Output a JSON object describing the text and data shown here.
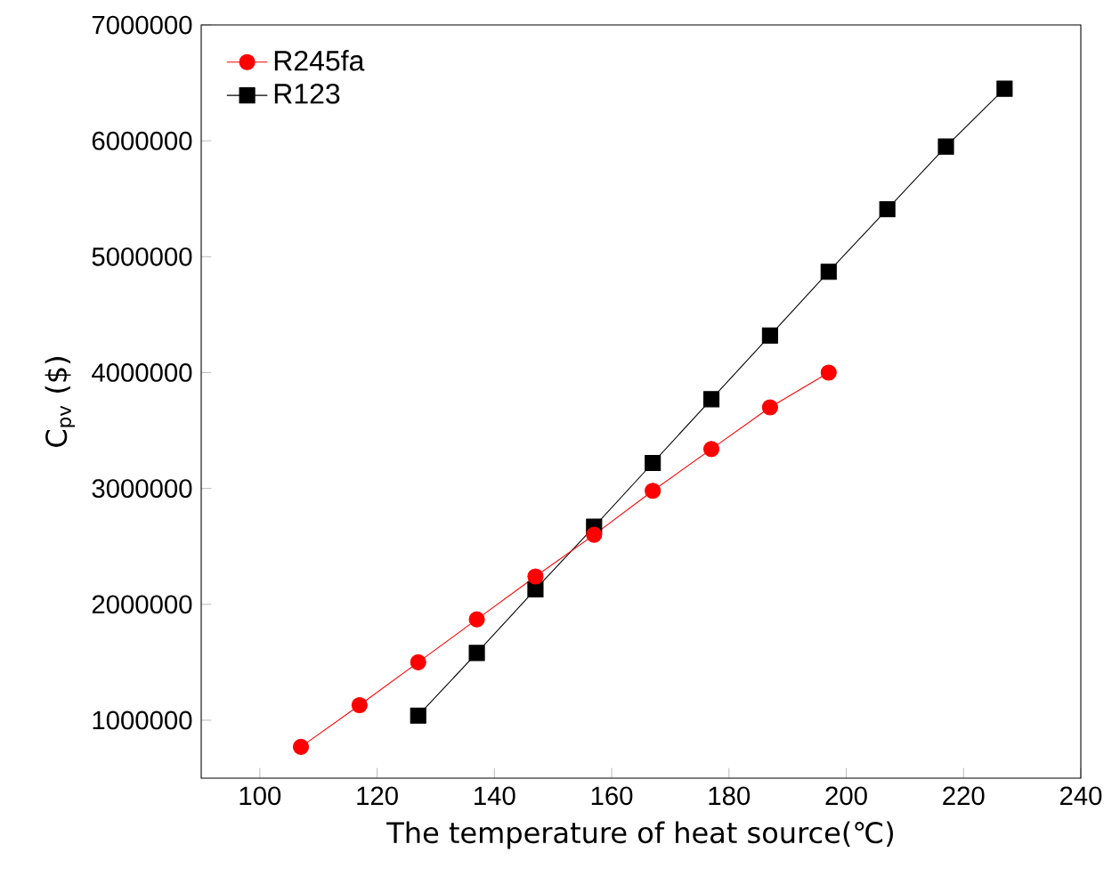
{
  "chart_data": {
    "type": "line",
    "xlabel": "The temperature of heat source(℃)",
    "ylabel": "C$_{pv}$ ($)",
    "xlim": [
      90,
      240
    ],
    "xticks": [
      100,
      120,
      140,
      160,
      180,
      200,
      220,
      240
    ],
    "ylim": [
      500000,
      7000000
    ],
    "yticks": [
      1000000,
      2000000,
      3000000,
      4000000,
      5000000,
      6000000,
      7000000
    ],
    "legend": "top left",
    "grid": false,
    "series": [
      {
        "name": "R245fa",
        "color": "#ff0000",
        "marker": "circle",
        "x": [
          107,
          117,
          127,
          137,
          147,
          157,
          167,
          177,
          187,
          197
        ],
        "values": [
          770000,
          1130000,
          1500000,
          1870000,
          2240000,
          2600000,
          2980000,
          3340000,
          3700000,
          4000000
        ]
      },
      {
        "name": "R123",
        "color": "#000000",
        "marker": "square",
        "x": [
          127,
          137,
          147,
          157,
          167,
          177,
          187,
          197,
          207,
          217,
          227
        ],
        "values": [
          1040000,
          1580000,
          2130000,
          2670000,
          3220000,
          3770000,
          4320000,
          4870000,
          5410000,
          5950000,
          6450000
        ]
      }
    ]
  }
}
